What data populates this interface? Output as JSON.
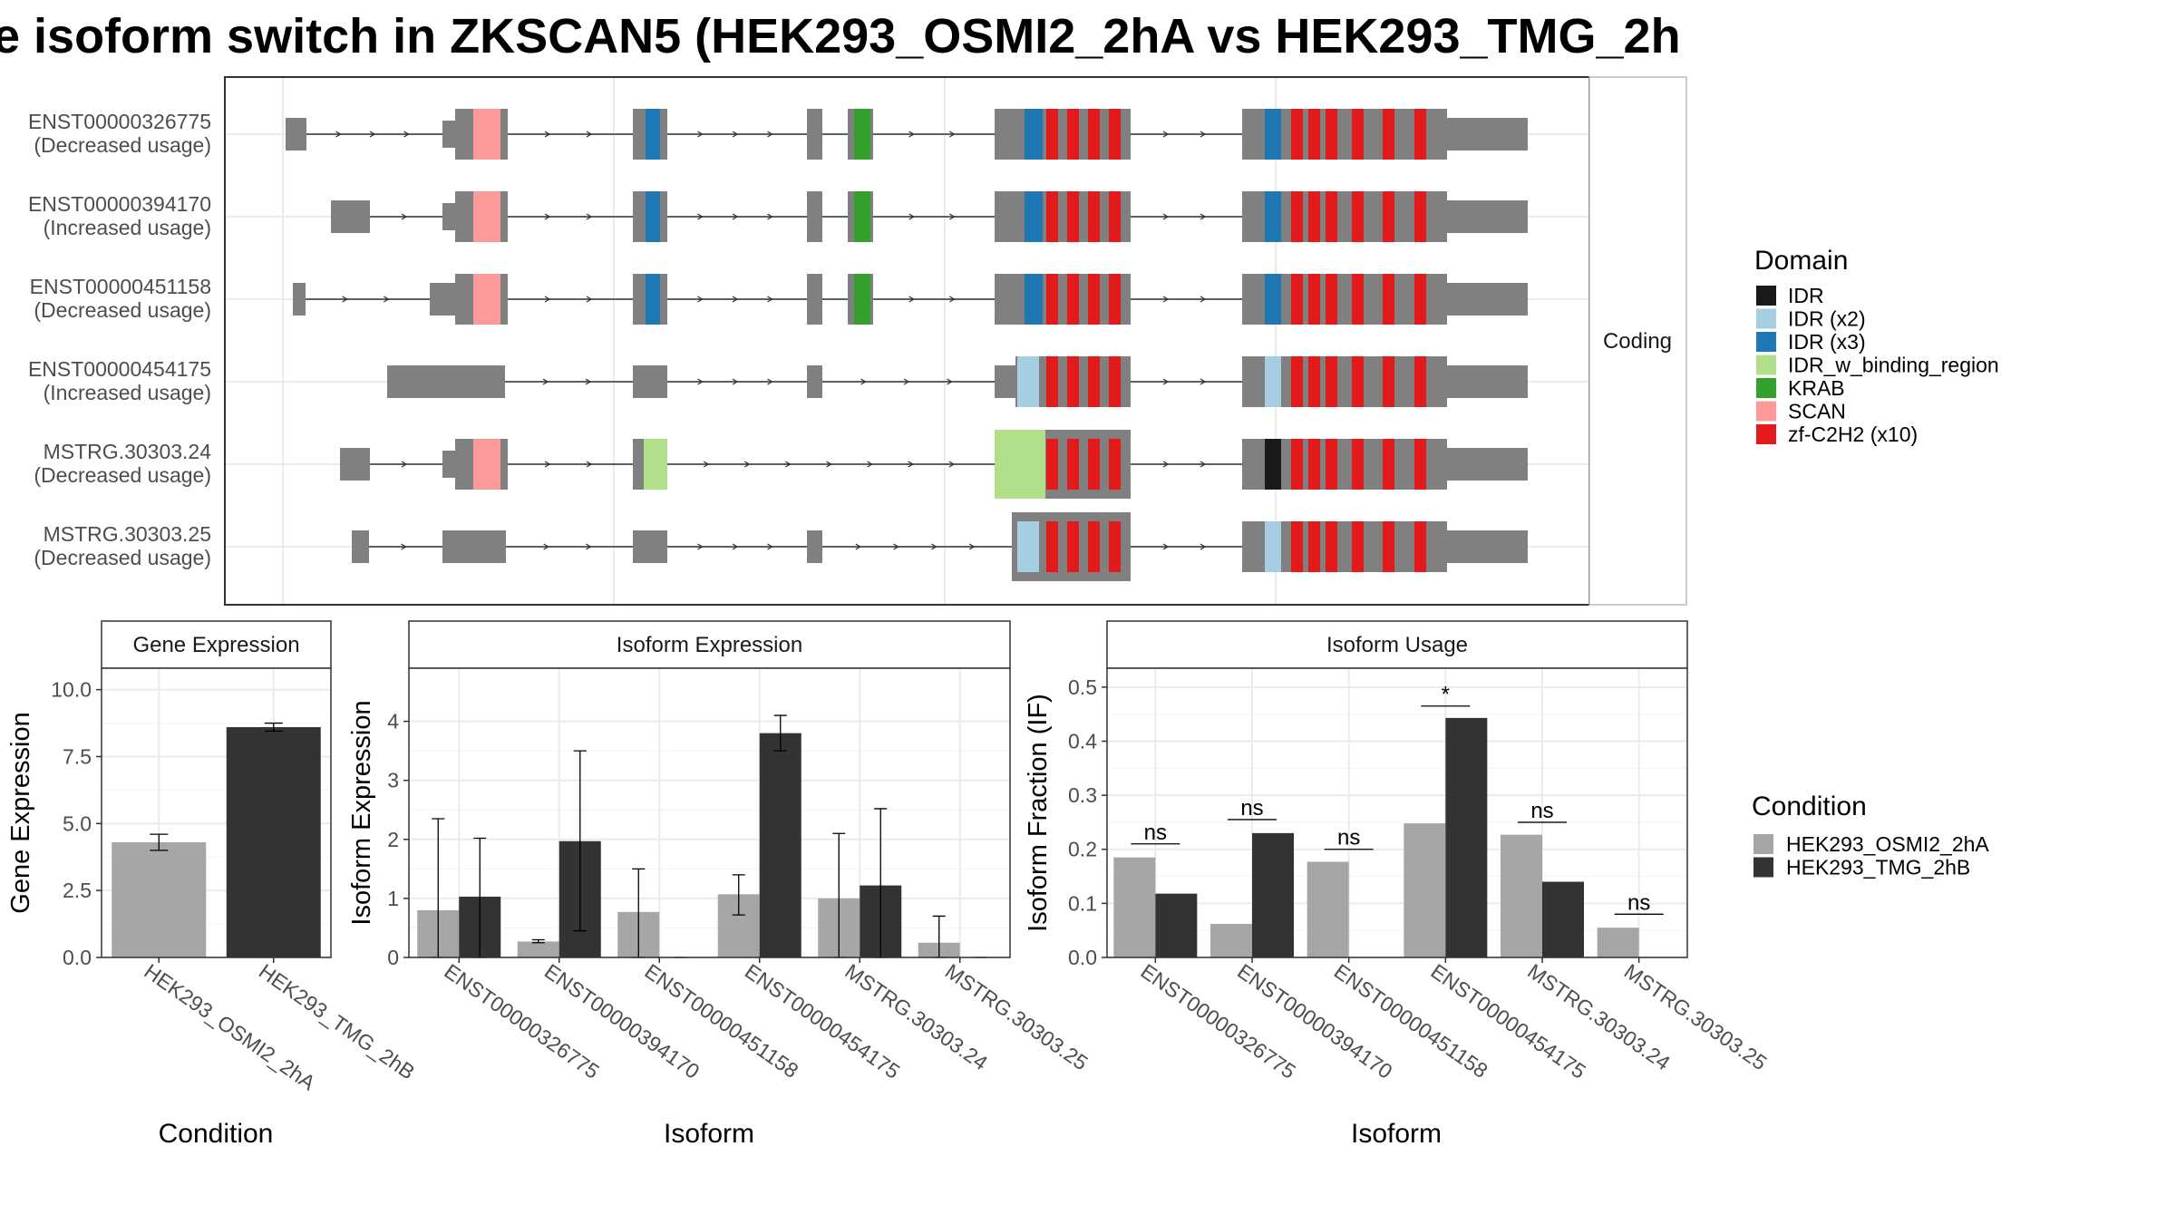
{
  "title": "e isoform switch in ZKSCAN5 (HEK293_OSMI2_2hA vs HEK293_TMG_2h",
  "structure_panel": {
    "strip_label": "Coding",
    "isoforms": [
      {
        "name": "ENST00000326775",
        "usage": "(Decreased usage)"
      },
      {
        "name": "ENST00000394170",
        "usage": "(Increased usage)"
      },
      {
        "name": "ENST00000451158",
        "usage": "(Decreased usage)"
      },
      {
        "name": "ENST00000454175",
        "usage": "(Increased usage)"
      },
      {
        "name": "MSTRG.30303.24",
        "usage": "(Decreased usage)"
      },
      {
        "name": "MSTRG.30303.25",
        "usage": "(Decreased usage)"
      }
    ]
  },
  "domain_legend": {
    "title": "Domain",
    "items": [
      {
        "label": "IDR",
        "color": "#1a1a1a"
      },
      {
        "label": "IDR (x2)",
        "color": "#a6cee3"
      },
      {
        "label": "IDR (x3)",
        "color": "#1f78b4"
      },
      {
        "label": "IDR_w_binding_region",
        "color": "#b2df8a"
      },
      {
        "label": "KRAB",
        "color": "#33a02c"
      },
      {
        "label": "SCAN",
        "color": "#fb9a99"
      },
      {
        "label": "zf-C2H2 (x10)",
        "color": "#e31a1c"
      }
    ]
  },
  "condition_legend": {
    "title": "Condition",
    "items": [
      {
        "label": "HEK293_OSMI2_2hA",
        "color": "#a6a6a6"
      },
      {
        "label": "HEK293_TMG_2hB",
        "color": "#333333"
      }
    ]
  },
  "chart_data": [
    {
      "type": "bar",
      "title": "Gene Expression",
      "xlabel": "Condition",
      "ylabel": "Gene Expression",
      "categories": [
        "HEK293_OSMI2_2hA",
        "HEK293_TMG_2hB"
      ],
      "values": [
        4.3,
        8.6
      ],
      "error_low": [
        4.0,
        8.45
      ],
      "error_high": [
        4.6,
        8.75
      ],
      "ylim": [
        0,
        10.8
      ],
      "yticks": [
        0.0,
        2.5,
        5.0,
        7.5,
        10.0
      ],
      "ytick_labels": [
        "0.0",
        "2.5",
        "5.0",
        "7.5",
        "10.0"
      ]
    },
    {
      "type": "bar",
      "title": "Isoform Expression",
      "xlabel": "Isoform",
      "ylabel": "Isoform Expression",
      "categories": [
        "ENST00000326775",
        "ENST00000394170",
        "ENST00000451158",
        "ENST00000454175",
        "MSTRG.30303.24",
        "MSTRG.30303.25"
      ],
      "series": [
        {
          "name": "HEK293_OSMI2_2hA",
          "values": [
            0.8,
            0.27,
            0.77,
            1.07,
            1.0,
            0.25
          ],
          "error_low": [
            0,
            0.25,
            0,
            0.72,
            0,
            0
          ],
          "error_high": [
            2.35,
            0.3,
            1.5,
            1.4,
            2.1,
            0.7
          ]
        },
        {
          "name": "HEK293_TMG_2hB",
          "values": [
            1.03,
            1.97,
            0,
            3.8,
            1.22,
            0
          ],
          "error_low": [
            0,
            0.45,
            0,
            3.5,
            0,
            0
          ],
          "error_high": [
            2.02,
            3.5,
            0,
            4.1,
            2.52,
            0
          ]
        }
      ],
      "ylim": [
        0,
        4.9
      ],
      "yticks": [
        0,
        1,
        2,
        3,
        4
      ],
      "ytick_labels": [
        "0",
        "1",
        "2",
        "3",
        "4"
      ]
    },
    {
      "type": "bar",
      "title": "Isoform Usage",
      "xlabel": "Isoform",
      "ylabel": "Isoform Fraction (IF)",
      "categories": [
        "ENST00000326775",
        "ENST00000394170",
        "ENST00000451158",
        "ENST00000454175",
        "MSTRG.30303.24",
        "MSTRG.30303.25"
      ],
      "series": [
        {
          "name": "HEK293_OSMI2_2hA",
          "values": [
            0.185,
            0.062,
            0.177,
            0.248,
            0.227,
            0.055
          ]
        },
        {
          "name": "HEK293_TMG_2hB",
          "values": [
            0.118,
            0.23,
            0,
            0.443,
            0.14,
            0
          ]
        }
      ],
      "significance": [
        "ns",
        "ns",
        "ns",
        "*",
        "ns",
        "ns"
      ],
      "significance_y": [
        0.21,
        0.255,
        0.2,
        0.465,
        0.25,
        0.08
      ],
      "ylim": [
        0,
        0.535
      ],
      "yticks": [
        0.0,
        0.1,
        0.2,
        0.3,
        0.4,
        0.5
      ],
      "ytick_labels": [
        "0.0",
        "0.1",
        "0.2",
        "0.3",
        "0.4",
        "0.5"
      ]
    }
  ]
}
